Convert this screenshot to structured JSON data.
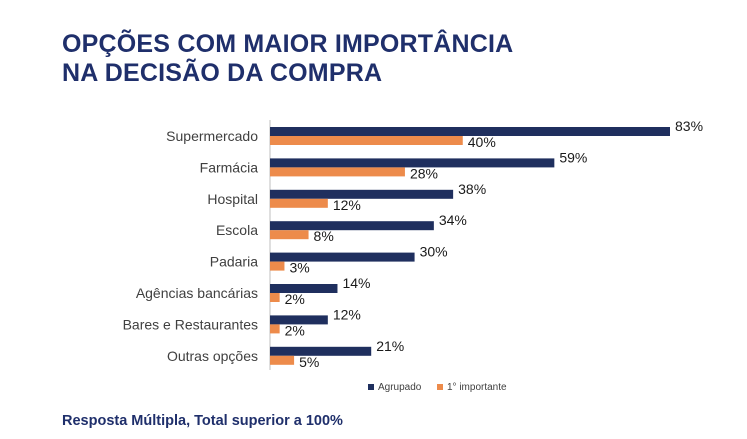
{
  "title_lines": [
    "OPÇÕES COM MAIOR IMPORTÂNCIA",
    "NA DECISÃO DA COMPRA"
  ],
  "footnote": "Resposta Múltipla, Total superior a 100%",
  "colors": {
    "title": "#1f2f6b",
    "agrupado": "#1f2f5e",
    "primeiro": "#ed8b4b"
  },
  "chart_data": {
    "type": "bar",
    "orientation": "horizontal",
    "categories": [
      "Supermercado",
      "Farmácia",
      "Hospital",
      "Escola",
      "Padaria",
      "Agências bancárias",
      "Bares e Restaurantes",
      "Outras opções"
    ],
    "series": [
      {
        "name": "Agrupado",
        "values": [
          83,
          59,
          38,
          34,
          30,
          14,
          12,
          21
        ],
        "labels": [
          "83%",
          "59%",
          "38%",
          "34%",
          "30%",
          "14%",
          "12%",
          "21%"
        ]
      },
      {
        "name": "1° importante",
        "values": [
          40,
          28,
          12,
          8,
          3,
          2,
          2,
          5
        ],
        "labels": [
          "40%",
          "28%",
          "12%",
          "8%",
          "3%",
          "2%",
          "2%",
          "5%"
        ]
      }
    ],
    "xlim": [
      0,
      83
    ],
    "grid": false,
    "legend_position": "bottom"
  }
}
